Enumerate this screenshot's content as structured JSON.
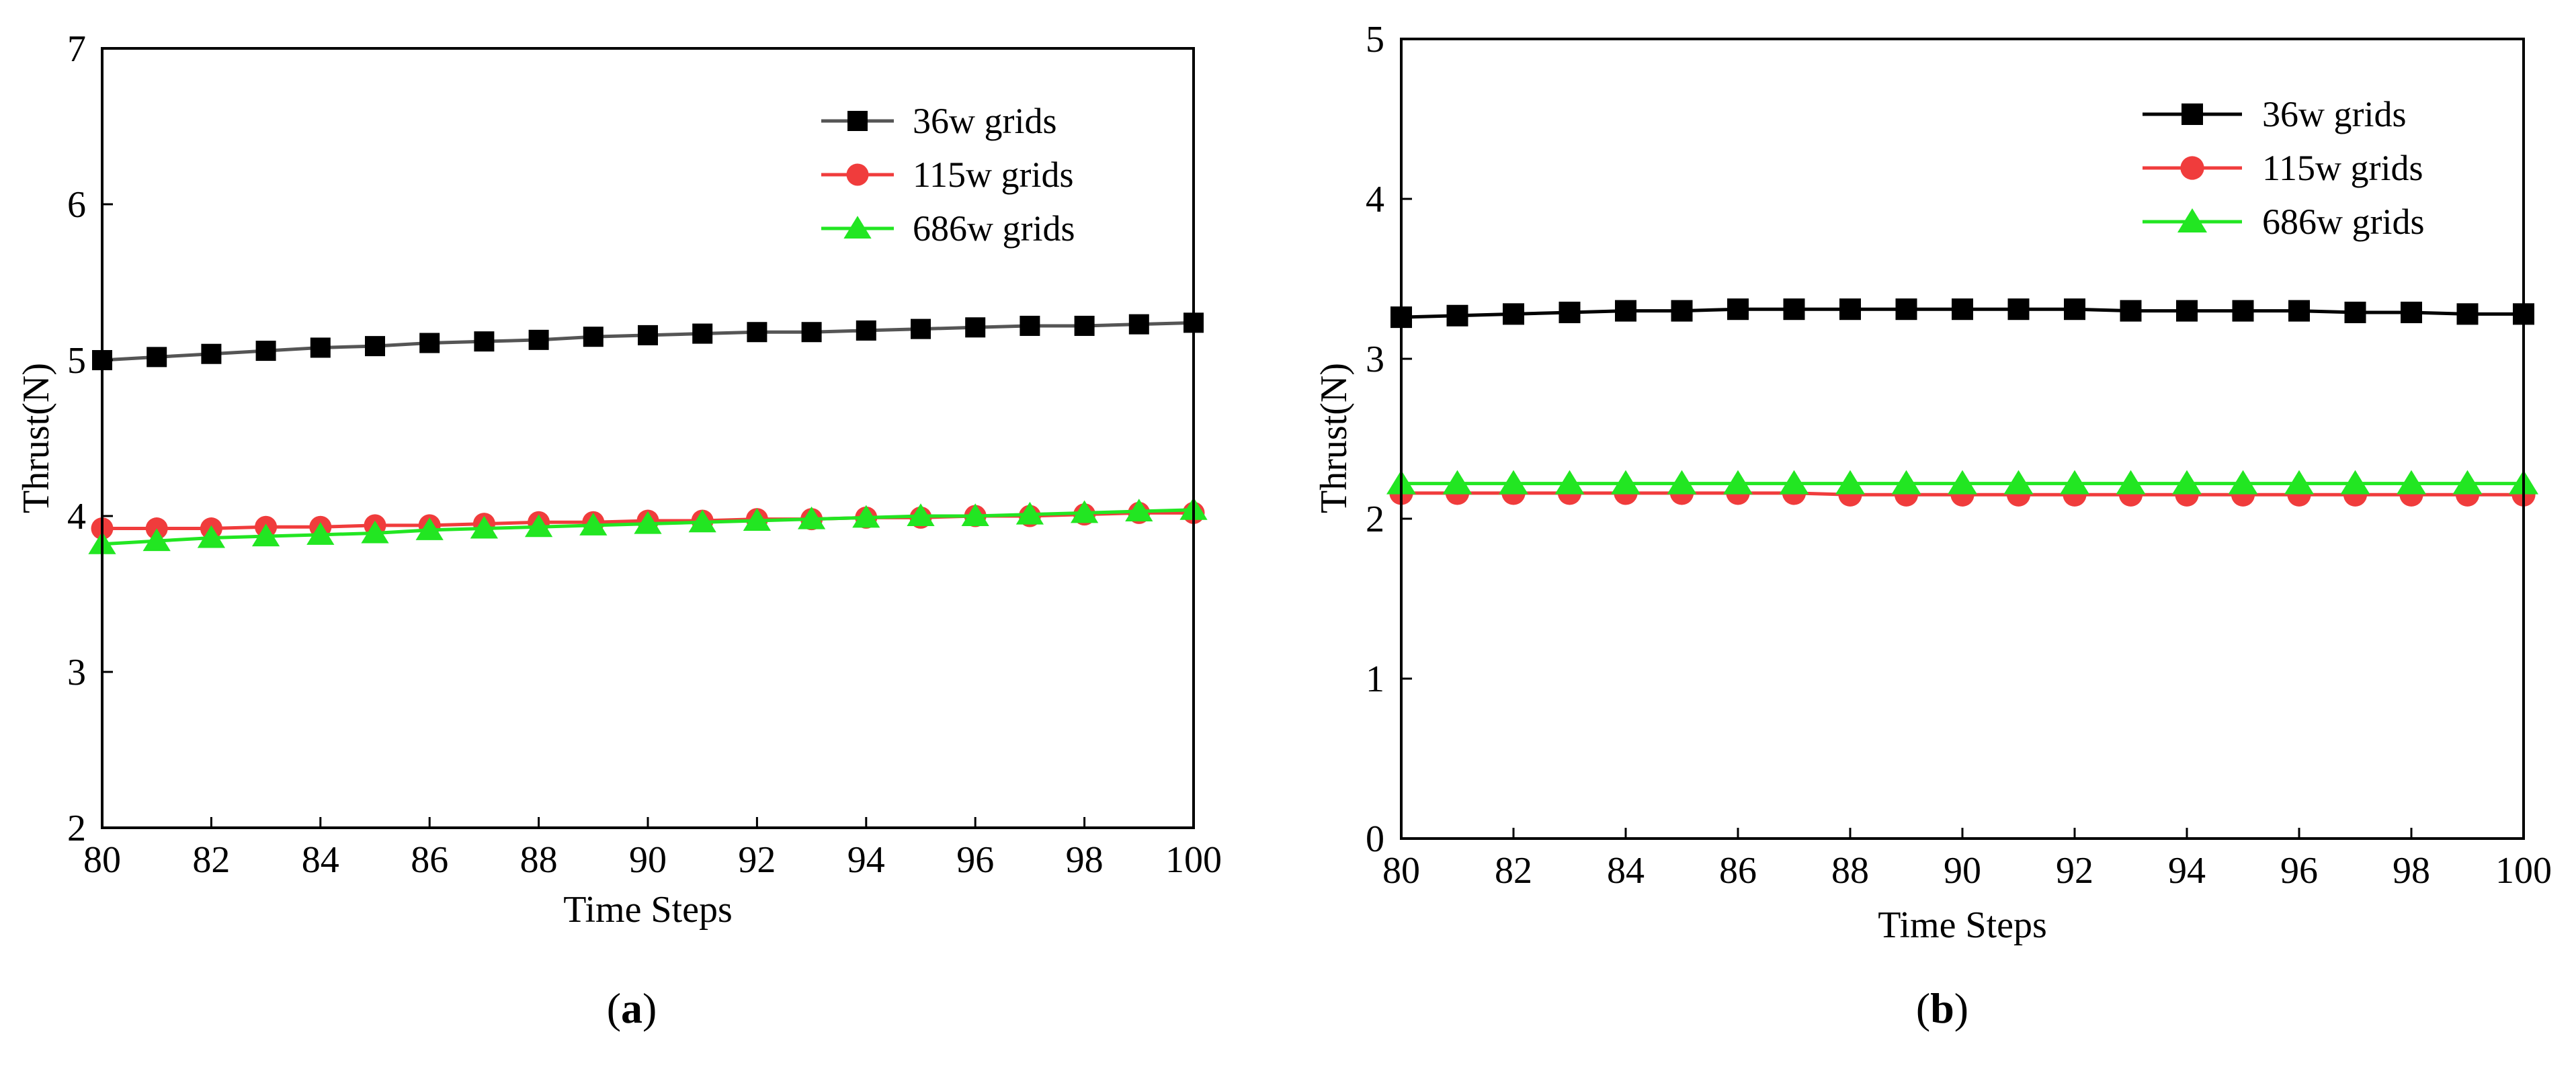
{
  "chart_data": [
    {
      "id": "a",
      "type": "line",
      "caption_letter": "a",
      "title": "",
      "xlabel": "Time Steps",
      "ylabel": "Thrust(N)",
      "xlim": [
        80,
        100
      ],
      "ylim": [
        2,
        7
      ],
      "xticks": [
        80,
        82,
        84,
        86,
        88,
        90,
        92,
        94,
        96,
        98,
        100
      ],
      "yticks": [
        2,
        3,
        4,
        5,
        6,
        7
      ],
      "legend_position": "top-right",
      "x": [
        80,
        81,
        82,
        83,
        84,
        85,
        86,
        87,
        88,
        89,
        90,
        91,
        92,
        93,
        94,
        95,
        96,
        97,
        98,
        99,
        100
      ],
      "series": [
        {
          "name": "36w grids",
          "color": "#000000",
          "line_color": "#555555",
          "marker": "square",
          "values": [
            5.0,
            5.02,
            5.04,
            5.06,
            5.08,
            5.09,
            5.11,
            5.12,
            5.13,
            5.15,
            5.16,
            5.17,
            5.18,
            5.18,
            5.19,
            5.2,
            5.21,
            5.22,
            5.22,
            5.23,
            5.24
          ]
        },
        {
          "name": "115w grids",
          "color": "#f03c3c",
          "line_color": "#f03c3c",
          "marker": "circle",
          "values": [
            3.92,
            3.92,
            3.92,
            3.93,
            3.93,
            3.94,
            3.94,
            3.95,
            3.96,
            3.96,
            3.97,
            3.97,
            3.98,
            3.98,
            3.99,
            3.99,
            4.0,
            4.0,
            4.01,
            4.02,
            4.02
          ]
        },
        {
          "name": "686w grids",
          "color": "#22e622",
          "line_color": "#22e622",
          "marker": "triangle",
          "values": [
            3.82,
            3.84,
            3.86,
            3.87,
            3.88,
            3.89,
            3.91,
            3.92,
            3.93,
            3.94,
            3.95,
            3.96,
            3.97,
            3.98,
            3.99,
            4.0,
            4.0,
            4.01,
            4.02,
            4.03,
            4.04
          ]
        }
      ]
    },
    {
      "id": "b",
      "type": "line",
      "caption_letter": "b",
      "title": "",
      "xlabel": "Time Steps",
      "ylabel": "Thrust(N)",
      "xlim": [
        80,
        100
      ],
      "ylim": [
        0,
        5
      ],
      "xticks": [
        80,
        82,
        84,
        86,
        88,
        90,
        92,
        94,
        96,
        98,
        100
      ],
      "yticks": [
        0,
        1,
        2,
        3,
        4,
        5
      ],
      "legend_position": "top-right",
      "x": [
        80,
        81,
        82,
        83,
        84,
        85,
        86,
        87,
        88,
        89,
        90,
        91,
        92,
        93,
        94,
        95,
        96,
        97,
        98,
        99,
        100
      ],
      "series": [
        {
          "name": "36w grids",
          "color": "#000000",
          "line_color": "#000000",
          "marker": "square",
          "values": [
            3.26,
            3.27,
            3.28,
            3.29,
            3.3,
            3.3,
            3.31,
            3.31,
            3.31,
            3.31,
            3.31,
            3.31,
            3.31,
            3.3,
            3.3,
            3.3,
            3.3,
            3.29,
            3.29,
            3.28,
            3.28
          ]
        },
        {
          "name": "115w grids",
          "color": "#f03c3c",
          "line_color": "#f03c3c",
          "marker": "circle",
          "values": [
            2.16,
            2.16,
            2.16,
            2.16,
            2.16,
            2.16,
            2.16,
            2.16,
            2.15,
            2.15,
            2.15,
            2.15,
            2.15,
            2.15,
            2.15,
            2.15,
            2.15,
            2.15,
            2.15,
            2.15,
            2.15
          ]
        },
        {
          "name": "686w grids",
          "color": "#22e622",
          "line_color": "#22e622",
          "marker": "triangle",
          "values": [
            2.22,
            2.22,
            2.22,
            2.22,
            2.22,
            2.22,
            2.22,
            2.22,
            2.22,
            2.22,
            2.22,
            2.22,
            2.22,
            2.22,
            2.22,
            2.22,
            2.22,
            2.22,
            2.22,
            2.22,
            2.22
          ]
        }
      ]
    }
  ]
}
